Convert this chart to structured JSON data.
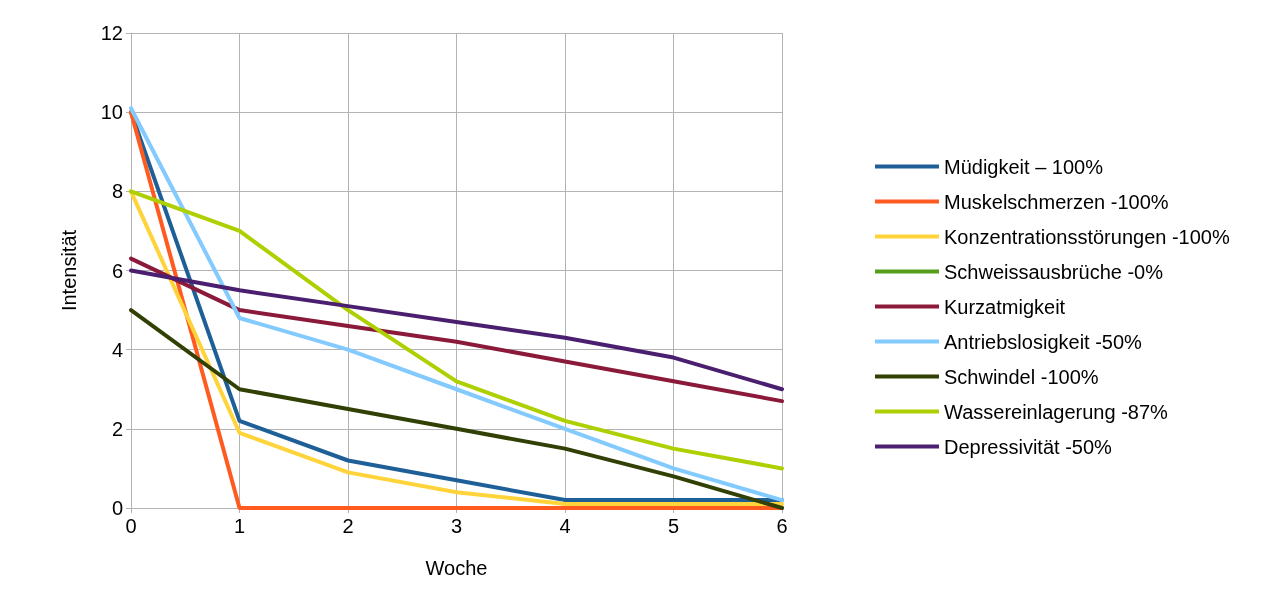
{
  "chart_data": {
    "type": "line",
    "xlabel": "Woche",
    "ylabel": "Intensität",
    "x": [
      0,
      1,
      2,
      3,
      4,
      5,
      6
    ],
    "xlim": [
      0,
      6
    ],
    "xticks": [
      0,
      1,
      2,
      3,
      4,
      5,
      6
    ],
    "ylim": [
      0,
      12
    ],
    "yticks": [
      0,
      2,
      4,
      6,
      8,
      10,
      12
    ],
    "grid": true,
    "legend": "right",
    "marker": "none",
    "line_style": "solid",
    "series": [
      {
        "name": "Müdigkeit – 100%",
        "color": "#1f5f97",
        "values": [
          10,
          2.2,
          1.2,
          0.7,
          0.2,
          0.2,
          0.2
        ]
      },
      {
        "name": "Muskelschmerzen -100%",
        "color": "#ff5a1f",
        "values": [
          10,
          0,
          0,
          0,
          0,
          0,
          0
        ]
      },
      {
        "name": "Konzentrationsstörungen -100%",
        "color": "#ffd33a",
        "values": [
          8,
          1.9,
          0.9,
          0.4,
          0.1,
          0.1,
          0.1
        ]
      },
      {
        "name": "Schweissausbrüche -0%",
        "color": "#579d1c",
        "values": [
          null,
          null,
          null,
          null,
          null,
          null,
          null
        ]
      },
      {
        "name": "Kurzatmigkeit",
        "color": "#8b1a3a",
        "values": [
          6.3,
          5.0,
          4.6,
          4.2,
          3.7,
          3.2,
          2.7
        ]
      },
      {
        "name": "Antriebslosigkeit -50%",
        "color": "#83caff",
        "values": [
          10.1,
          4.8,
          4.0,
          3.0,
          2.0,
          1.0,
          0.2
        ]
      },
      {
        "name": "Schwindel -100%",
        "color": "#314004",
        "values": [
          5,
          3,
          2.5,
          2.0,
          1.5,
          0.8,
          0
        ]
      },
      {
        "name": "Wassereinlagerung -87%",
        "color": "#aecf00",
        "values": [
          8,
          7,
          5,
          3.2,
          2.2,
          1.5,
          1.0
        ]
      },
      {
        "name": "Depressivität -50%",
        "color": "#4b1f6f",
        "values": [
          6,
          5.5,
          5.1,
          4.7,
          4.3,
          3.8,
          3.0
        ]
      }
    ]
  }
}
